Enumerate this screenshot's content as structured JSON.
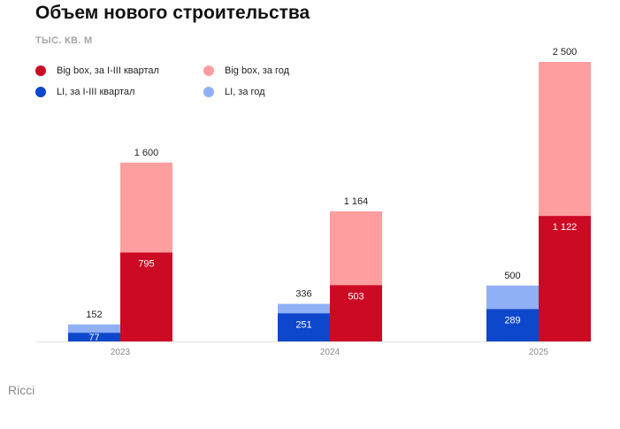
{
  "chart_data": {
    "type": "bar",
    "title": "Объем нового строительства",
    "unit": "тыс. кв. м",
    "categories": [
      "2023",
      "2024",
      "2025"
    ],
    "series": [
      {
        "name": "Big box, за I-III квартал",
        "color": "#cc0a24",
        "values": [
          795,
          503,
          1122
        ],
        "labels": [
          "795",
          "503",
          "1 122"
        ]
      },
      {
        "name": "Big box, за год",
        "color": "#ff9e9e",
        "values": [
          1600,
          1164,
          2500
        ],
        "labels": [
          "1 600",
          "1 164",
          "2 500"
        ]
      },
      {
        "name": "LI, за I-III квартал",
        "color": "#0d47cc",
        "values": [
          77,
          251,
          289
        ],
        "labels": [
          "77",
          "251",
          "289"
        ]
      },
      {
        "name": "LI, за год",
        "color": "#8fb0f5",
        "values": [
          152,
          336,
          500
        ],
        "labels": [
          "152",
          "336",
          "500"
        ]
      }
    ],
    "ylim": [
      0,
      2500
    ],
    "grid": false,
    "legend_position": "top-left"
  },
  "source": "Ricci"
}
